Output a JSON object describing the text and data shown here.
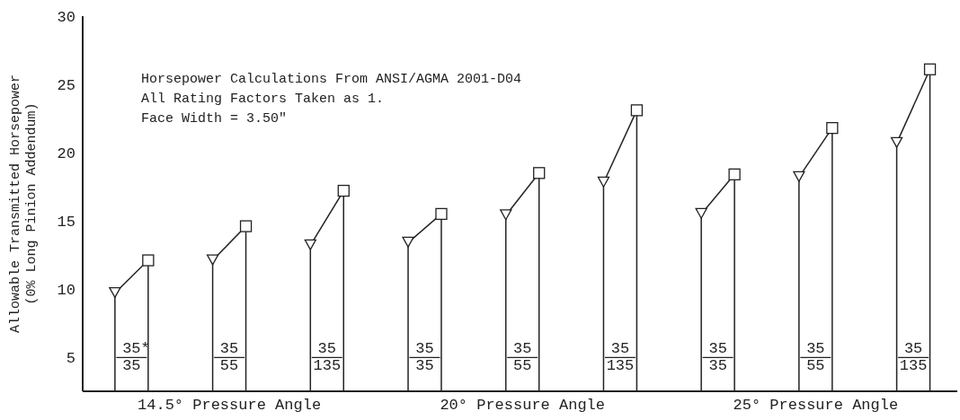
{
  "chart_data": {
    "type": "lollipop",
    "ylabel": "Allowable Transmitted Horsepower\n(0% Long Pinion Addendum)",
    "categories": [
      null,
      "14.5° Pressure Angle",
      null,
      null,
      "20° Pressure Angle",
      null,
      null,
      "25° Pressure Angle",
      null
    ],
    "ylim": [
      2.5,
      30
    ],
    "yticks": [
      5,
      10,
      15,
      20,
      25,
      30
    ],
    "series": [
      {
        "marker": "triangle",
        "color": "#222222",
        "values": [
          9.7,
          12.1,
          13.2,
          13.4,
          15.4,
          17.8,
          15.5,
          18.2,
          20.7
        ]
      },
      {
        "marker": "square",
        "color": "#222222",
        "values": [
          12.1,
          14.6,
          17.2,
          15.5,
          18.5,
          23.1,
          18.4,
          21.8,
          26.1
        ]
      }
    ],
    "annotations": [
      "Horsepower Calculations From ANSI/AGMA 2001-D04",
      "All Rating Factors Taken as 1.",
      "Face Width = 3.50\"",
      "35*\n35",
      "35\n55",
      "35\n135",
      "35\n35",
      "35\n55",
      "35\n135",
      "35\n35",
      "35\n55",
      "35\n135"
    ]
  }
}
